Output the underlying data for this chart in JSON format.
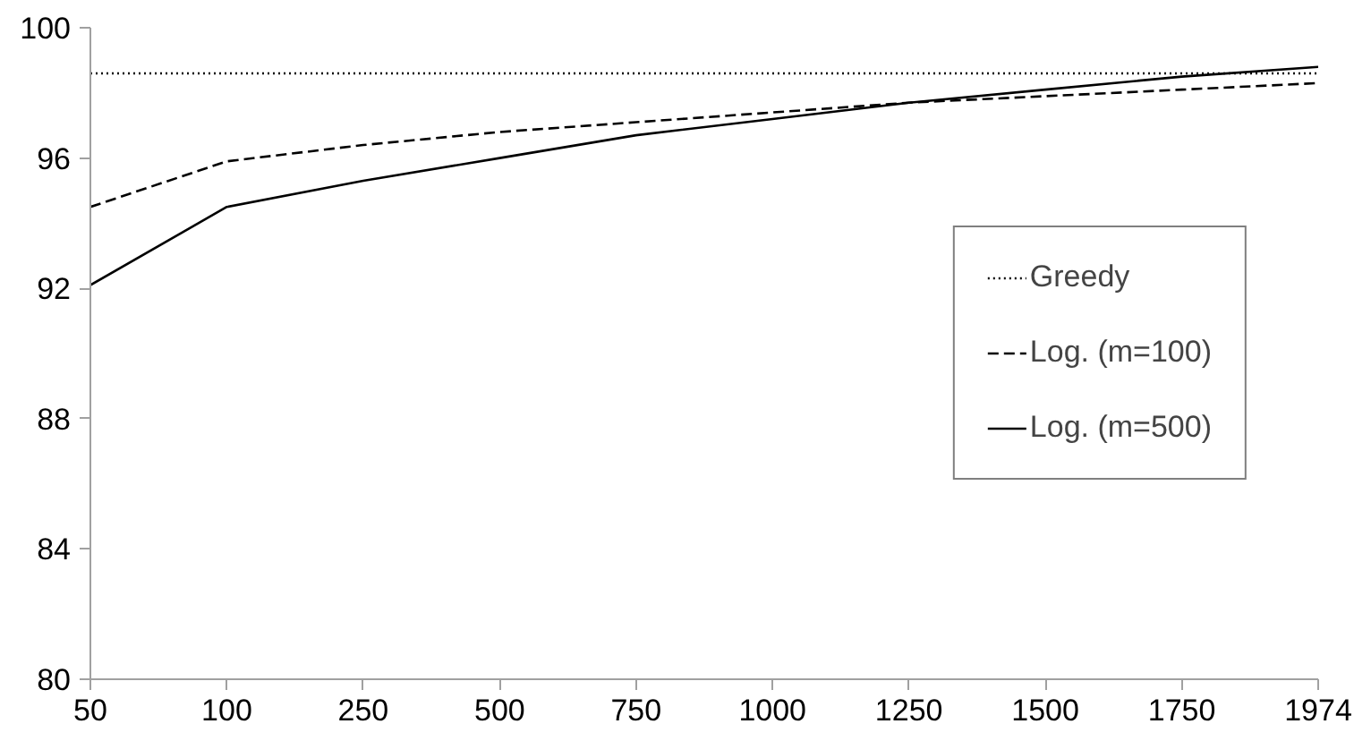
{
  "chart_data": {
    "type": "line",
    "categories": [
      "50",
      "100",
      "250",
      "500",
      "750",
      "1000",
      "1250",
      "1500",
      "1750",
      "1974"
    ],
    "series": [
      {
        "name": "Greedy",
        "color": "#000000",
        "line_style": "dotted",
        "values": [
          98.6,
          98.6,
          98.6,
          98.6,
          98.6,
          98.6,
          98.6,
          98.6,
          98.6,
          98.6
        ]
      },
      {
        "name": "Log. (m=100)",
        "color": "#000000",
        "line_style": "dashed",
        "values": [
          94.5,
          95.9,
          96.4,
          96.8,
          97.1,
          97.4,
          97.7,
          97.9,
          98.1,
          98.3
        ]
      },
      {
        "name": "Log. (m=500)",
        "color": "#000000",
        "line_style": "solid",
        "values": [
          92.1,
          94.5,
          95.3,
          96.0,
          96.7,
          97.2,
          97.7,
          98.1,
          98.5,
          98.8
        ]
      }
    ],
    "ylim": [
      80,
      100
    ],
    "yticks": [
      80,
      84,
      88,
      92,
      96,
      100
    ],
    "grid": false,
    "legend": "right",
    "marker": "none"
  }
}
